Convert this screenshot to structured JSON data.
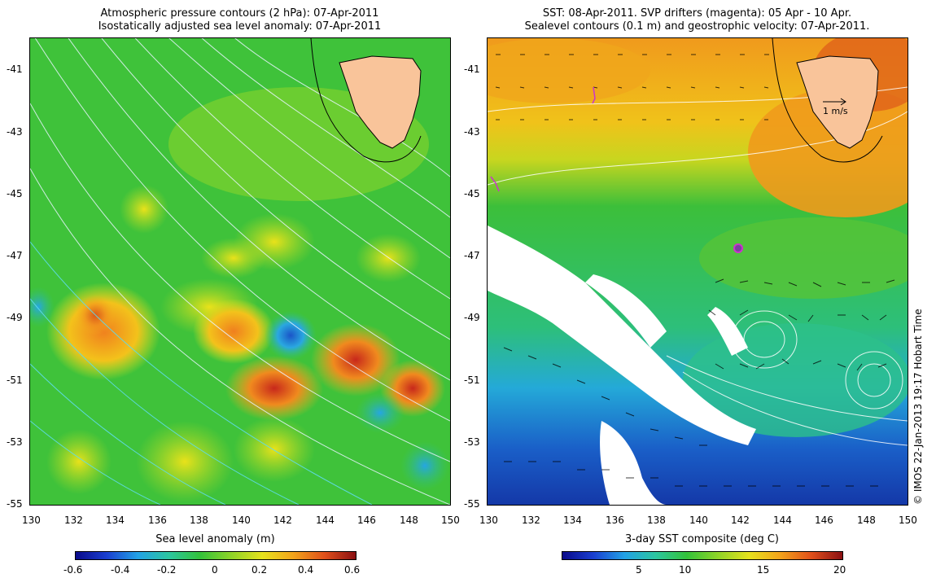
{
  "left_panel": {
    "title_line1": "Atmospheric pressure contours (2 hPa): 07-Apr-2011",
    "title_line2": "Isostatically adjusted sea level anomaly: 07-Apr-2011",
    "lat_ticks": [
      "-41",
      "-43",
      "-45",
      "-47",
      "-49",
      "-51",
      "-53",
      "-55"
    ],
    "lon_ticks": [
      "130",
      "132",
      "134",
      "136",
      "138",
      "140",
      "142",
      "144",
      "146",
      "148",
      "150"
    ],
    "colorbar_label": "Sea level anomaly (m)",
    "colorbar_ticks": [
      "-0.6",
      "-0.4",
      "-0.2",
      "0",
      "0.2",
      "0.4",
      "0.6"
    ],
    "colorbar_range": [
      -0.6,
      0.6
    ]
  },
  "right_panel": {
    "title_line1": "SST: 08-Apr-2011. SVP drifters (magenta): 05 Apr - 10 Apr.",
    "title_line2": "Sealevel contours (0.1 m) and geostrophic velocity: 07-Apr-2011.",
    "lat_ticks": [
      "-41",
      "-43",
      "-45",
      "-47",
      "-49",
      "-51",
      "-53",
      "-55"
    ],
    "lon_ticks": [
      "130",
      "132",
      "134",
      "136",
      "138",
      "140",
      "142",
      "144",
      "146",
      "148",
      "150"
    ],
    "velocity_scale_label": "1 m/s",
    "colorbar_label": "3-day SST composite (deg C)",
    "colorbar_ticks": [
      "5",
      "10",
      "15",
      "20"
    ],
    "colorbar_range": [
      2,
      20
    ]
  },
  "credit": "© IMOS 22-Jan-2013 19:17 Hobart Time",
  "colors": {
    "land": "#f9c49a",
    "ocean_green": "#3fc23a",
    "sst_orange": "#f4a11d",
    "drifter_magenta": "#cc33cc"
  }
}
